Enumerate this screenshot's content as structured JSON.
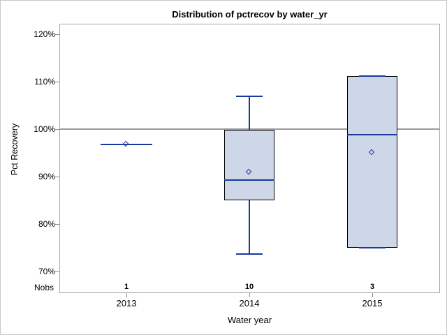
{
  "colors": {
    "background": "#FFFFFF",
    "outer_border": "#C8C8C8",
    "frame": "#A6A6A6",
    "reference_line": "#9A9A9A",
    "tick": "#8C8C8C",
    "text": "#000000",
    "box_fill": "#CDD7E7",
    "box_border": "#000000",
    "line_blue": "#1A3A9C"
  },
  "chart_data": {
    "type": "box",
    "title": "Distribution of pctrecov by water_yr",
    "xlabel": "Water year",
    "ylabel": "Pct Recovery",
    "nobs_label": "Nobs",
    "categories": [
      "2013",
      "2014",
      "2015"
    ],
    "nobs": [
      "1",
      "10",
      "3"
    ],
    "y_unit": "%",
    "y_ticks": [
      {
        "value": 120,
        "label": "120%"
      },
      {
        "value": 110,
        "label": "110%"
      },
      {
        "value": 100,
        "label": "100%"
      },
      {
        "value": 90,
        "label": "90%"
      },
      {
        "value": 80,
        "label": "80%"
      },
      {
        "value": 70,
        "label": "70%"
      }
    ],
    "ylim": [
      66,
      123
    ],
    "reference_line": 100,
    "grid": false,
    "legend": "none",
    "mean_marker": "diamond",
    "series": [
      {
        "category": "2013",
        "n": 1,
        "min": 96.7,
        "q1": 96.7,
        "median": 96.7,
        "q3": 96.7,
        "max": 96.7,
        "mean": 96.7
      },
      {
        "category": "2014",
        "n": 10,
        "min": 73.7,
        "q1": 85.0,
        "median": 89.3,
        "q3": 99.8,
        "max": 106.9,
        "mean": 90.9
      },
      {
        "category": "2015",
        "n": 3,
        "min": 75.0,
        "q1": 75.0,
        "median": 98.8,
        "q3": 111.2,
        "max": 111.2,
        "mean": 95.0
      }
    ]
  }
}
